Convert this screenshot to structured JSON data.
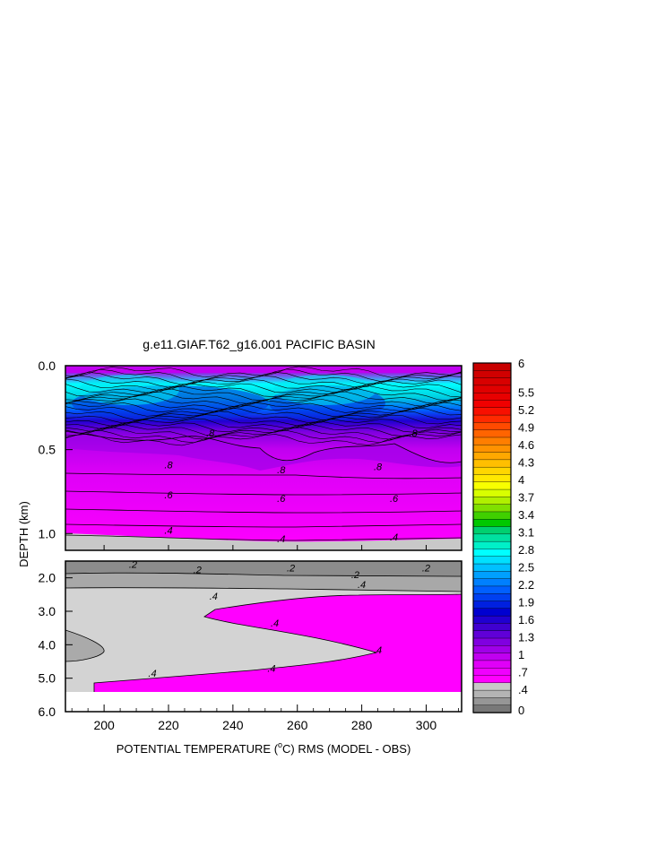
{
  "chart_data": {
    "type": "heatmap",
    "title": "g.e11.GIAF.T62_g16.001 PACIFIC BASIN",
    "xlabel": "POTENTIAL TEMPERATURE (",
    "xlabel_unit": "o",
    "xlabel_tail": "C) RMS (MODEL - OBS)",
    "ylabel": "DEPTH (km)",
    "xlim": [
      188,
      311
    ],
    "x_ticks": [
      "200",
      "220",
      "240",
      "260",
      "280",
      "300"
    ],
    "upper_panel": {
      "ylim": [
        0.0,
        1.1
      ],
      "y_ticks": [
        "0.0",
        "0.5",
        "1.0"
      ],
      "contour_labels": [
        {
          "text": ".8",
          "x": 233,
          "y": 0.4
        },
        {
          "text": ".8",
          "x": 296,
          "y": 0.4
        },
        {
          "text": ".8",
          "x": 220,
          "y": 0.59
        },
        {
          "text": ".8",
          "x": 255,
          "y": 0.62
        },
        {
          "text": ".8",
          "x": 285,
          "y": 0.6
        },
        {
          "text": ".6",
          "x": 220,
          "y": 0.77
        },
        {
          "text": ".6",
          "x": 255,
          "y": 0.79
        },
        {
          "text": ".6",
          "x": 290,
          "y": 0.79
        },
        {
          "text": ".4",
          "x": 220,
          "y": 0.98
        },
        {
          "text": ".4",
          "x": 255,
          "y": 1.03
        },
        {
          "text": ".4",
          "x": 290,
          "y": 1.02
        }
      ]
    },
    "lower_panel": {
      "ylim": [
        1.5,
        6.0
      ],
      "y_ticks": [
        "2.0",
        "3.0",
        "4.0",
        "5.0",
        "6.0"
      ],
      "contour_labels": [
        {
          "text": ".2",
          "x": 209,
          "y": 1.6
        },
        {
          "text": ".2",
          "x": 229,
          "y": 1.75
        },
        {
          "text": ".2",
          "x": 258,
          "y": 1.7
        },
        {
          "text": ".2",
          "x": 278,
          "y": 1.9
        },
        {
          "text": ".2",
          "x": 300,
          "y": 1.7
        },
        {
          "text": ".4",
          "x": 234,
          "y": 2.55
        },
        {
          "text": ".4",
          "x": 280,
          "y": 2.2
        },
        {
          "text": ".4",
          "x": 253,
          "y": 3.35
        },
        {
          "text": ".4",
          "x": 285,
          "y": 4.15
        },
        {
          "text": ".4",
          "x": 252,
          "y": 4.7
        },
        {
          "text": ".4",
          "x": 215,
          "y": 4.85
        }
      ]
    },
    "colorbar": {
      "min": 0,
      "max": 6,
      "labels": [
        "6",
        "5.5",
        "5.2",
        "4.9",
        "4.6",
        "4.3",
        "4",
        "3.7",
        "3.4",
        "3.1",
        "2.8",
        "2.5",
        "2.2",
        "1.9",
        "1.6",
        "1.3",
        "1",
        ".7",
        ".4",
        "0"
      ],
      "label_values": [
        6,
        5.5,
        5.2,
        4.9,
        4.6,
        4.3,
        4.0,
        3.7,
        3.4,
        3.1,
        2.8,
        2.5,
        2.2,
        1.9,
        1.6,
        1.3,
        1.0,
        0.7,
        0.4,
        0
      ],
      "colors_top_to_bottom": [
        "#c80000",
        "#d00000",
        "#d80000",
        "#e00000",
        "#e80000",
        "#f00000",
        "#f81000",
        "#ff2a00",
        "#ff4a00",
        "#ff6400",
        "#ff7e00",
        "#ff9200",
        "#ffa800",
        "#ffbf00",
        "#ffd600",
        "#ffe800",
        "#f8ff00",
        "#d8ff00",
        "#b0f000",
        "#80e000",
        "#40d000",
        "#00c800",
        "#00d070",
        "#00e0a0",
        "#00f0c8",
        "#00ffff",
        "#00e0ff",
        "#00c0ff",
        "#00a0ff",
        "#0080ff",
        "#0060ff",
        "#0040f0",
        "#0020e0",
        "#0000d0",
        "#2000d0",
        "#4000d0",
        "#6000d8",
        "#8000e0",
        "#a000e8",
        "#c000f0",
        "#e000f8",
        "#f000ff",
        "#ff00ff",
        "#c8c8c8",
        "#b4b4b4",
        "#969696",
        "#787878"
      ]
    }
  }
}
